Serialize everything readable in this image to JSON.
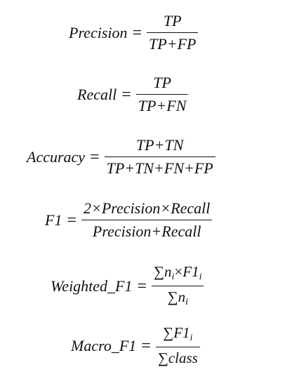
{
  "formulas": {
    "precision": {
      "lhs": "Precision",
      "eq": "=",
      "numerator": "TP",
      "denominator": "TP+FP"
    },
    "recall": {
      "lhs": "Recall",
      "eq": "=",
      "numerator": "TP",
      "denominator": "TP+FN"
    },
    "accuracy": {
      "lhs": "Accuracy",
      "eq": "=",
      "numerator": "TP+TN",
      "denominator": "TP+TN+FN+FP"
    },
    "f1": {
      "lhs": "F1",
      "eq": "=",
      "numerator": "2×Precision×Recall",
      "denominator": "Precision+Recall"
    },
    "weighted_f1": {
      "lhs": "Weighted_F1",
      "eq": "=",
      "num_sum": "∑",
      "num_n": "n",
      "num_sub_i": "i",
      "num_times": "×",
      "num_f1": "F1",
      "num_sub_i2": "i",
      "den_sum": "∑",
      "den_n": "n",
      "den_sub_i": "i"
    },
    "macro_f1": {
      "lhs": "Macro_F1",
      "eq": "=",
      "num_sum": "∑",
      "num_f1": "F1",
      "num_sub_i": "i",
      "den_sum": "∑",
      "den_class": "class"
    }
  }
}
